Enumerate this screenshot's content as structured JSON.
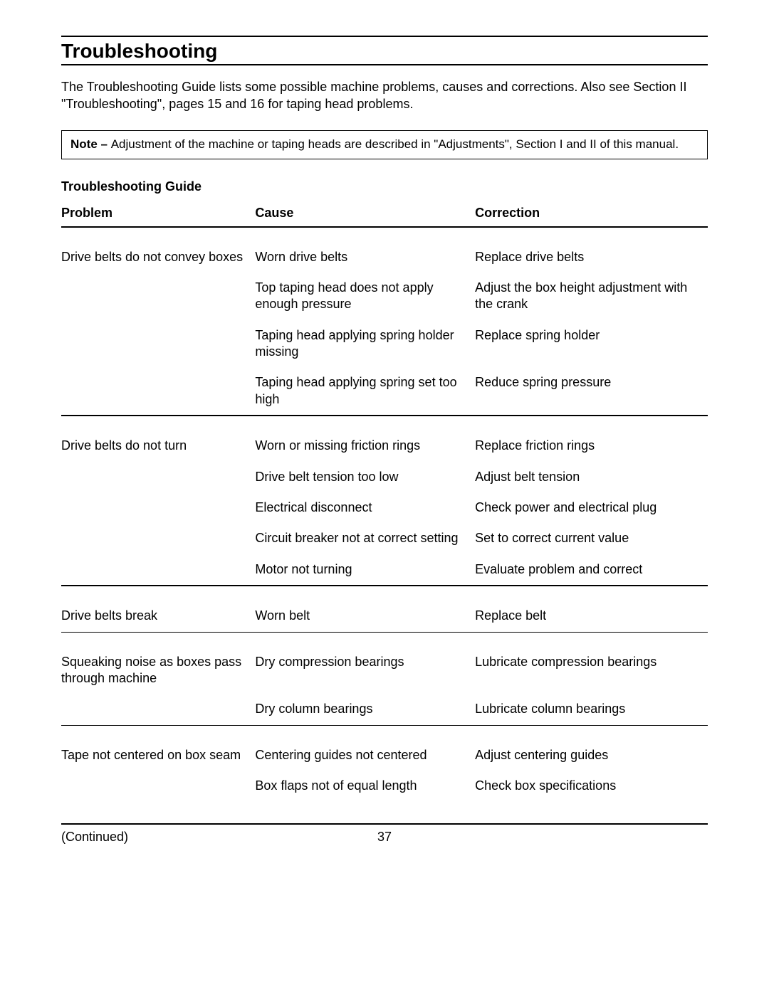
{
  "section_title": "Troubleshooting",
  "intro_text": "The Troubleshooting Guide lists some possible machine problems, causes and corrections.  Also see Section II \"Troubleshooting\",  pages 15 and 16 for taping head problems.",
  "note": {
    "label": "Note – ",
    "text": "Adjustment of the machine or taping heads are described in \"Adjustments\", Section I and II of this manual."
  },
  "guide_heading": "Troubleshooting Guide",
  "headers": {
    "problem": "Problem",
    "cause": "Cause",
    "correction": "Correction"
  },
  "rows": [
    {
      "problem": "Drive belts do not convey boxes",
      "cause": "Worn drive belts",
      "correction": "Replace drive belts"
    },
    {
      "problem": "",
      "cause": "Top taping head does not apply enough pressure",
      "correction": "Adjust the box height adjustment with the crank"
    },
    {
      "problem": "",
      "cause": "Taping head applying spring holder missing",
      "correction": "Replace spring holder"
    },
    {
      "problem": "",
      "cause": "Taping head applying spring set too high",
      "correction": "Reduce spring pressure"
    },
    {
      "problem": "Drive belts do not turn",
      "cause": "Worn or missing friction rings",
      "correction": "Replace friction rings"
    },
    {
      "problem": "",
      "cause": "Drive belt tension too low",
      "correction": "Adjust belt tension"
    },
    {
      "problem": "",
      "cause": "Electrical disconnect",
      "correction": "Check power and electrical plug"
    },
    {
      "problem": "",
      "cause": "Circuit breaker not at correct setting",
      "correction": "Set to correct current value"
    },
    {
      "problem": "",
      "cause": "Motor not turning",
      "correction": "Evaluate problem and correct"
    },
    {
      "problem": "Drive belts break",
      "cause": "Worn belt",
      "correction": "Replace belt"
    },
    {
      "problem": "Squeaking noise as boxes pass through machine",
      "cause": "Dry compression bearings",
      "correction": "Lubricate compression bearings"
    },
    {
      "problem": "",
      "cause": "Dry column bearings",
      "correction": "Lubricate column bearings"
    },
    {
      "problem": "Tape not centered on box seam",
      "cause": "Centering guides not centered",
      "correction": "Adjust centering guides"
    },
    {
      "problem": "",
      "cause": "Box flaps not of equal length",
      "correction": "Check box specifications"
    }
  ],
  "continued": "(Continued)",
  "page_number": "37"
}
